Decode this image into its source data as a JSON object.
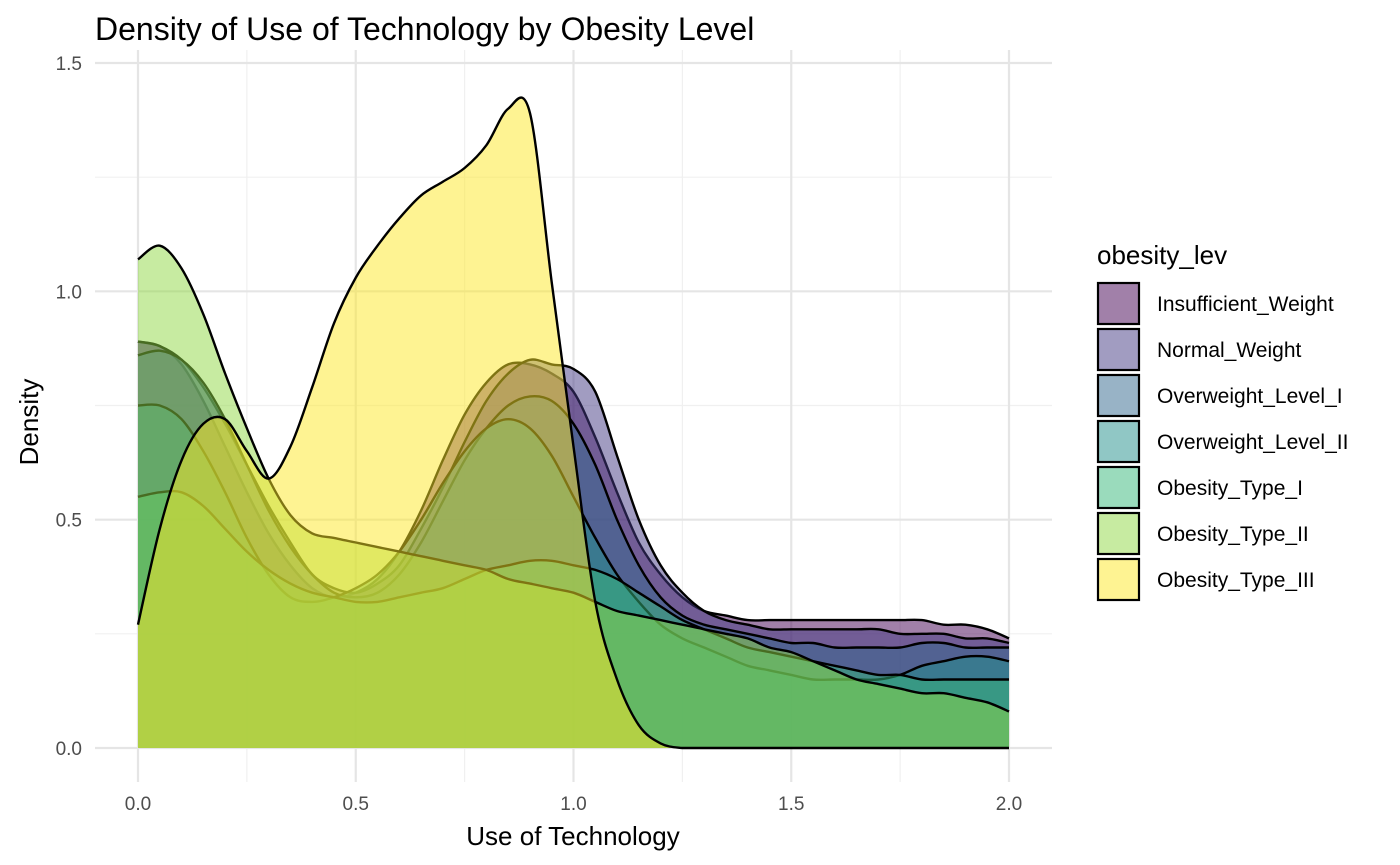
{
  "chart_data": {
    "type": "area",
    "title": "Density of Use of Technology by Obesity Level",
    "xlabel": "Use of Technology",
    "ylabel": "Density",
    "xlim": [
      -0.1,
      2.1
    ],
    "ylim": [
      -0.05,
      1.5
    ],
    "xticks": [
      0.0,
      0.5,
      1.0,
      1.5,
      2.0
    ],
    "xtick_labels": [
      "0.0",
      "0.5",
      "1.0",
      "1.5",
      "2.0"
    ],
    "yticks": [
      0.0,
      0.5,
      1.0,
      1.5
    ],
    "ytick_labels": [
      "0.0",
      "0.5",
      "1.0",
      "1.5"
    ],
    "grid": true,
    "legend_position": "right",
    "legend_title": "obesity_lev",
    "fill_alpha": 0.5,
    "x": [
      0.0,
      0.05,
      0.1,
      0.15,
      0.2,
      0.25,
      0.3,
      0.35,
      0.4,
      0.45,
      0.5,
      0.55,
      0.6,
      0.65,
      0.7,
      0.75,
      0.8,
      0.85,
      0.9,
      0.95,
      1.0,
      1.05,
      1.1,
      1.15,
      1.2,
      1.25,
      1.3,
      1.35,
      1.4,
      1.45,
      1.5,
      1.55,
      1.6,
      1.65,
      1.7,
      1.75,
      1.8,
      1.85,
      1.9,
      1.95,
      2.0
    ],
    "series": [
      {
        "name": "Insufficient_Weight",
        "color": "#440154",
        "values": [
          0.89,
          0.88,
          0.84,
          0.76,
          0.66,
          0.56,
          0.47,
          0.4,
          0.35,
          0.33,
          0.34,
          0.37,
          0.43,
          0.52,
          0.63,
          0.73,
          0.8,
          0.84,
          0.84,
          0.82,
          0.78,
          0.68,
          0.56,
          0.45,
          0.38,
          0.33,
          0.3,
          0.29,
          0.28,
          0.28,
          0.28,
          0.28,
          0.28,
          0.28,
          0.28,
          0.28,
          0.28,
          0.27,
          0.27,
          0.26,
          0.24
        ]
      },
      {
        "name": "Normal_Weight",
        "color": "#443A83",
        "values": [
          0.89,
          0.88,
          0.85,
          0.79,
          0.71,
          0.62,
          0.53,
          0.45,
          0.38,
          0.35,
          0.34,
          0.36,
          0.4,
          0.48,
          0.57,
          0.67,
          0.76,
          0.82,
          0.85,
          0.84,
          0.83,
          0.78,
          0.64,
          0.5,
          0.4,
          0.34,
          0.3,
          0.28,
          0.27,
          0.26,
          0.26,
          0.26,
          0.26,
          0.26,
          0.26,
          0.25,
          0.25,
          0.25,
          0.24,
          0.24,
          0.23
        ]
      },
      {
        "name": "Overweight_Level_I",
        "color": "#31688E",
        "values": [
          0.86,
          0.87,
          0.85,
          0.8,
          0.72,
          0.62,
          0.52,
          0.44,
          0.38,
          0.34,
          0.33,
          0.34,
          0.38,
          0.45,
          0.54,
          0.63,
          0.7,
          0.75,
          0.77,
          0.76,
          0.71,
          0.62,
          0.5,
          0.4,
          0.33,
          0.29,
          0.27,
          0.26,
          0.25,
          0.24,
          0.23,
          0.23,
          0.22,
          0.22,
          0.22,
          0.22,
          0.23,
          0.23,
          0.22,
          0.22,
          0.22
        ]
      },
      {
        "name": "Overweight_Level_II",
        "color": "#21908C",
        "values": [
          0.75,
          0.75,
          0.72,
          0.65,
          0.56,
          0.46,
          0.38,
          0.33,
          0.32,
          0.33,
          0.35,
          0.38,
          0.43,
          0.5,
          0.58,
          0.65,
          0.7,
          0.72,
          0.7,
          0.64,
          0.55,
          0.46,
          0.38,
          0.32,
          0.27,
          0.24,
          0.22,
          0.2,
          0.18,
          0.17,
          0.16,
          0.15,
          0.15,
          0.15,
          0.15,
          0.16,
          0.18,
          0.19,
          0.2,
          0.2,
          0.19
        ]
      },
      {
        "name": "Obesity_Type_I",
        "color": "#35B779",
        "values": [
          0.55,
          0.56,
          0.56,
          0.53,
          0.48,
          0.43,
          0.39,
          0.36,
          0.34,
          0.33,
          0.32,
          0.32,
          0.33,
          0.34,
          0.35,
          0.37,
          0.39,
          0.4,
          0.41,
          0.41,
          0.4,
          0.39,
          0.37,
          0.34,
          0.31,
          0.28,
          0.26,
          0.24,
          0.22,
          0.21,
          0.2,
          0.19,
          0.18,
          0.17,
          0.16,
          0.16,
          0.15,
          0.15,
          0.15,
          0.15,
          0.15
        ]
      },
      {
        "name": "Obesity_Type_II",
        "color": "#8FD744",
        "values": [
          1.07,
          1.1,
          1.05,
          0.95,
          0.82,
          0.7,
          0.59,
          0.51,
          0.47,
          0.46,
          0.45,
          0.44,
          0.43,
          0.42,
          0.41,
          0.4,
          0.39,
          0.37,
          0.36,
          0.35,
          0.34,
          0.32,
          0.3,
          0.29,
          0.28,
          0.27,
          0.26,
          0.25,
          0.24,
          0.22,
          0.21,
          0.19,
          0.17,
          0.15,
          0.14,
          0.13,
          0.12,
          0.12,
          0.11,
          0.1,
          0.08
        ]
      },
      {
        "name": "Obesity_Type_III",
        "color": "#FDE725",
        "values": [
          0.27,
          0.48,
          0.63,
          0.71,
          0.72,
          0.65,
          0.59,
          0.66,
          0.79,
          0.93,
          1.03,
          1.1,
          1.16,
          1.21,
          1.24,
          1.27,
          1.32,
          1.4,
          1.39,
          1.02,
          0.66,
          0.32,
          0.15,
          0.05,
          0.01,
          0.0,
          0.0,
          0.0,
          0.0,
          0.0,
          0.0,
          0.0,
          0.0,
          0.0,
          0.0,
          0.0,
          0.0,
          0.0,
          0.0,
          0.0,
          0.0
        ]
      }
    ]
  }
}
